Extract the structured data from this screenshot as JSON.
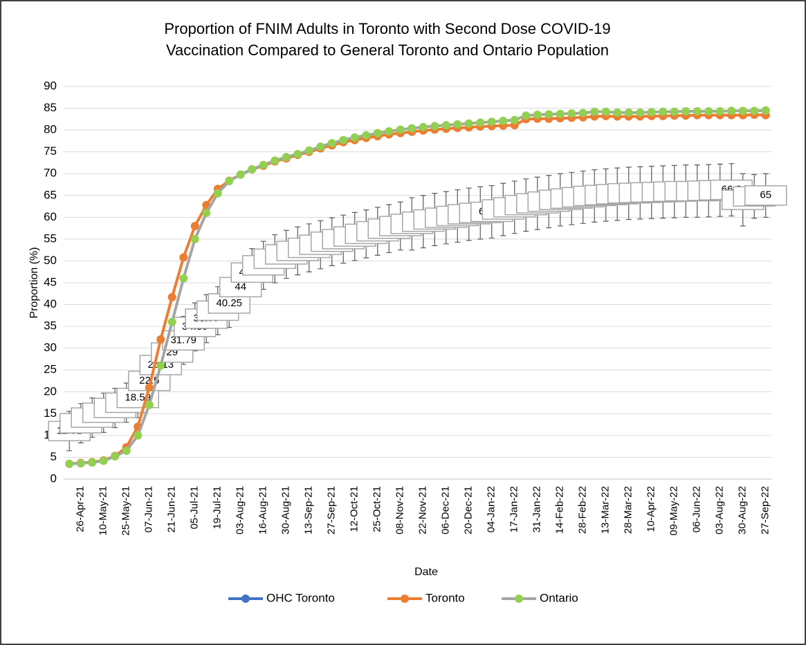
{
  "chart_data": {
    "type": "line",
    "title": [
      "Proportion of FNIM Adults in Toronto with Second Dose COVID-19",
      "Vaccination Compared to General Toronto and Ontario Population"
    ],
    "x_label": "Date",
    "y_label": "Proportion (%)",
    "categories": [
      null,
      "26-Apr-21",
      null,
      "10-May-21",
      null,
      "25-May-21",
      null,
      "07-Jun-21",
      null,
      "21-Jun-21",
      null,
      "05-Jul-21",
      null,
      "19-Jul-21",
      null,
      "03-Aug-21",
      null,
      "16-Aug-21",
      null,
      "30-Aug-21",
      null,
      "13-Sep-21",
      null,
      "27-Sep-21",
      null,
      "12-Oct-21",
      null,
      "25-Oct-21",
      null,
      "08-Nov-21",
      null,
      "22-Nov-21",
      null,
      "06-Dec-21",
      null,
      "20-Dec-21",
      null,
      "04-Jan-22",
      null,
      "17-Jan-22",
      null,
      "31-Jan-22",
      null,
      "14-Feb-22",
      null,
      "28-Feb-22",
      null,
      "13-Mar-22",
      null,
      "28-Mar-22",
      null,
      "10-Apr-22",
      null,
      "09-May-22",
      null,
      "06-Jun-22",
      null,
      "03-Aug-22",
      null,
      "30-Aug-22",
      null,
      "27-Sep-22"
    ],
    "series": [
      {
        "name": "OHC Toronto",
        "color": "#4472c4",
        "marker_color": "#4472c4",
        "values": [
          11.01,
          12.8,
          14.1,
          15.2,
          16.3,
          17.5,
          18.59,
          22.5,
          26.13,
          29.0,
          31.79,
          34.89,
          36.77,
          38.6,
          40.25,
          44.0,
          47.32,
          49.0,
          50.5,
          51.5,
          52.3,
          53.0,
          53.7,
          54.4,
          55.0,
          55.6,
          56.2,
          56.8,
          57.4,
          58.0,
          58.5,
          59.0,
          59.5,
          59.9,
          60.3,
          60.7,
          61.0,
          61.25,
          61.8,
          62.3,
          62.8,
          63.2,
          63.6,
          64.0,
          64.3,
          64.6,
          64.9,
          65.1,
          65.3,
          65.5,
          65.6,
          65.7,
          65.8,
          65.9,
          66.0,
          66.0,
          66.1,
          66.2,
          66.3,
          64.0,
          64.8,
          65.0
        ],
        "errors": [
          4.5,
          4.5,
          4.5,
          4.5,
          4.5,
          4.5,
          4.5,
          4.5,
          4.5,
          4.5,
          5.5,
          5.5,
          5.5,
          5.5,
          5.5,
          5.5,
          5.5,
          5.5,
          5.5,
          5.5,
          5.5,
          5.5,
          5.5,
          5.5,
          5.5,
          5.5,
          5.5,
          5.5,
          5.5,
          5.5,
          6,
          6,
          6,
          6,
          6,
          6,
          6,
          6,
          6,
          6,
          6,
          6,
          6,
          6,
          6,
          6,
          6,
          6,
          6,
          6,
          6,
          6,
          6,
          6,
          6,
          6,
          6,
          6,
          6,
          6,
          5,
          5
        ]
      },
      {
        "name": "Toronto",
        "color": "#ed7d31",
        "marker_color": "#ed7d31",
        "values": [
          3.5,
          3.7,
          3.9,
          4.3,
          5.3,
          7.3,
          12,
          21,
          32,
          41.7,
          50.8,
          58,
          62.8,
          66.5,
          68.4,
          69.8,
          71,
          71.8,
          72.8,
          73.5,
          74.3,
          75,
          75.8,
          76.5,
          77.2,
          77.7,
          78.2,
          78.6,
          79,
          79.3,
          79.6,
          79.9,
          80.1,
          80.3,
          80.5,
          80.6,
          80.8,
          80.9,
          81.0,
          81.1,
          82.5,
          82.6,
          82.6,
          82.7,
          82.8,
          82.9,
          83.1,
          83.2,
          83.1,
          83.1,
          83.1,
          83.2,
          83.2,
          83.3,
          83.3,
          83.4,
          83.4,
          83.4,
          83.4,
          83.4,
          83.5,
          83.4
        ]
      },
      {
        "name": "Ontario",
        "color": "#a5a5a5",
        "marker_color": "#92d050",
        "values": [
          3.5,
          3.6,
          3.8,
          4.2,
          5.2,
          6.5,
          10,
          17,
          26,
          36,
          46,
          55,
          61,
          65.5,
          68.3,
          69.8,
          71,
          72,
          73,
          73.8,
          74.5,
          75.3,
          76.2,
          77,
          77.7,
          78.3,
          78.8,
          79.3,
          79.7,
          80.1,
          80.4,
          80.7,
          80.9,
          81.1,
          81.3,
          81.5,
          81.7,
          81.9,
          82.1,
          82.3,
          83.3,
          83.5,
          83.6,
          83.7,
          83.8,
          83.9,
          84.2,
          84.2,
          84.0,
          84.0,
          84.0,
          84.1,
          84.2,
          84.2,
          84.3,
          84.3,
          84.3,
          84.3,
          84.4,
          84.4,
          84.4,
          84.5
        ]
      }
    ],
    "ylim": [
      0,
      90
    ],
    "yticks": [
      0,
      5,
      10,
      15,
      20,
      25,
      30,
      35,
      40,
      45,
      50,
      55,
      60,
      65,
      70,
      75,
      80,
      85,
      90
    ],
    "grid": true,
    "legend": "bottom"
  }
}
